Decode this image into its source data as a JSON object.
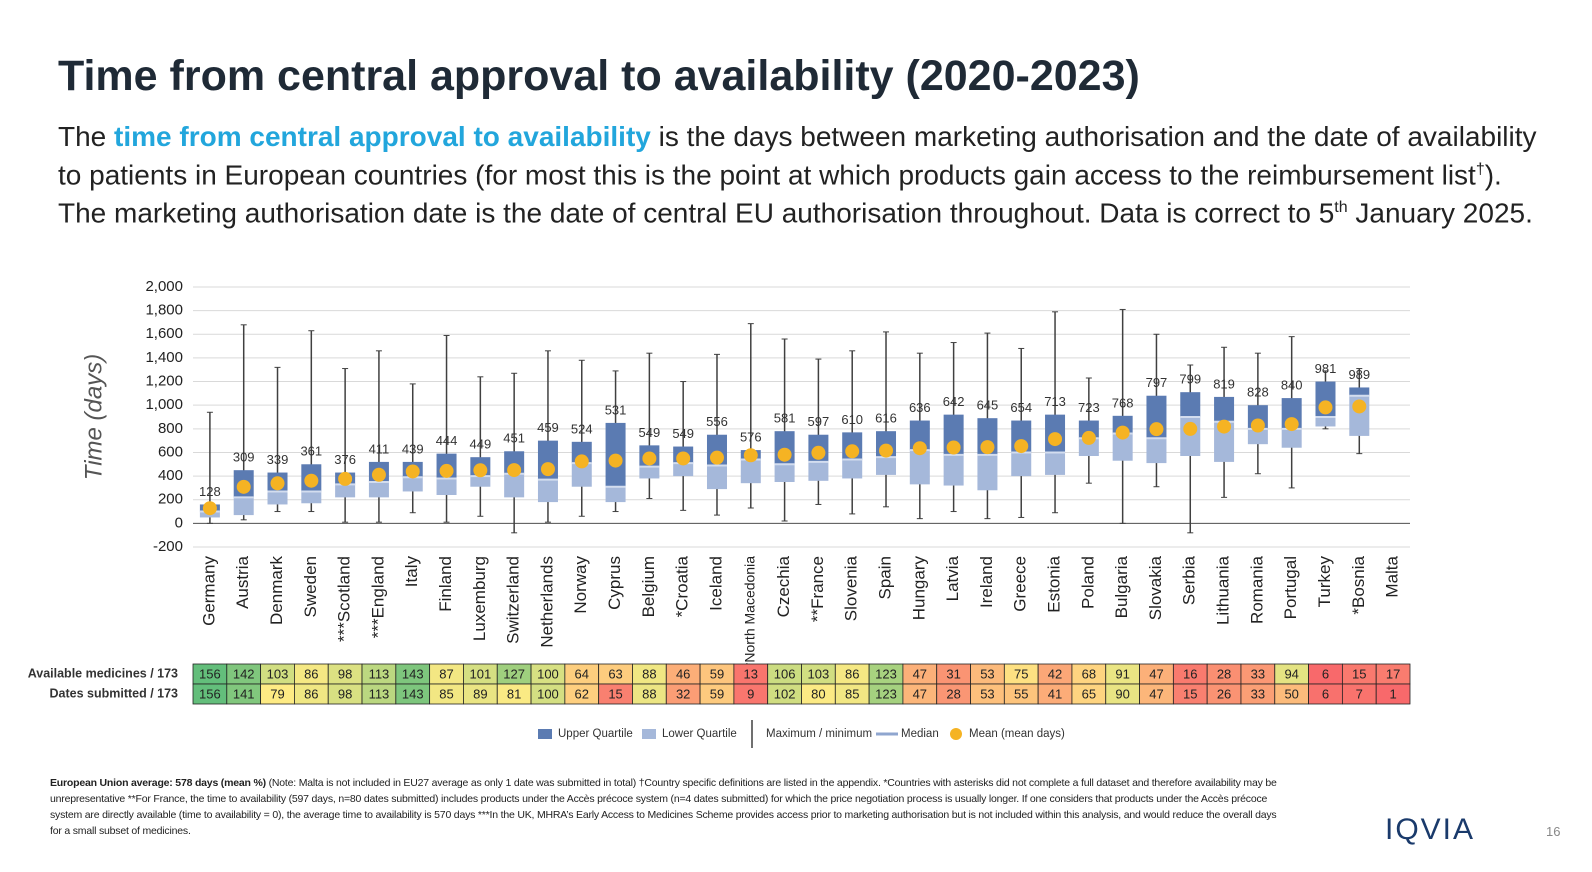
{
  "header": {
    "title": "Time from central approval to availability (2020-2023)",
    "subtitle": [
      "The ",
      "time from central approval to availability",
      " is the days between marketing authorisation and the date of availability to patients in European countries (for most this is the point at which products gain access to the reimbursement list",
      "†",
      "). The marketing authorisation date is the date of central EU authorisation throughout. Data is correct to 5",
      "th",
      " January 2025."
    ]
  },
  "chart_data": {
    "type": "box",
    "y_label": "Time (days)",
    "categories": [
      "Germany",
      "Austria",
      "Denmark",
      "Sweden",
      "***Scotland",
      "***England",
      "Italy",
      "Finland",
      "Luxemburg",
      "Switzerland",
      "Netherlands",
      "Norway",
      "Cyprus",
      "Belgium",
      "*Croatia",
      "Iceland",
      "*North Macedonia",
      "Czechia",
      "**France",
      "Slovenia",
      "Spain",
      "Hungary",
      "Latvia",
      "Ireland",
      "Greece",
      "Estonia",
      "Poland",
      "Bulgaria",
      "Slovakia",
      "Serbia",
      "Lithuania",
      "Romania",
      "Portugal",
      "Turkey",
      "*Bosnia",
      "Malta"
    ],
    "min": [
      0,
      30,
      100,
      100,
      10,
      10,
      90,
      10,
      60,
      -80,
      10,
      60,
      100,
      210,
      110,
      70,
      130,
      20,
      160,
      80,
      140,
      40,
      100,
      40,
      50,
      90,
      340,
      0,
      310,
      -80,
      220,
      420,
      300,
      800,
      590,
      null
    ],
    "q1": [
      50,
      70,
      160,
      170,
      220,
      220,
      270,
      240,
      310,
      220,
      180,
      310,
      180,
      380,
      400,
      290,
      340,
      350,
      360,
      380,
      410,
      330,
      320,
      280,
      400,
      410,
      570,
      530,
      510,
      570,
      520,
      670,
      640,
      820,
      740,
      null
    ],
    "median": [
      100,
      220,
      270,
      270,
      330,
      350,
      390,
      380,
      400,
      420,
      370,
      510,
      310,
      480,
      510,
      490,
      540,
      500,
      520,
      540,
      560,
      620,
      580,
      580,
      600,
      600,
      720,
      760,
      720,
      900,
      860,
      800,
      800,
      900,
      1080,
      null
    ],
    "q3": [
      160,
      450,
      430,
      500,
      430,
      520,
      520,
      590,
      560,
      610,
      700,
      690,
      850,
      660,
      650,
      750,
      620,
      780,
      750,
      770,
      780,
      870,
      920,
      890,
      870,
      920,
      870,
      910,
      1080,
      1110,
      1070,
      1000,
      1060,
      1200,
      1150,
      null
    ],
    "max": [
      940,
      1680,
      1320,
      1630,
      1310,
      1460,
      1180,
      1590,
      1240,
      1270,
      1460,
      1380,
      1290,
      1440,
      1200,
      1430,
      1690,
      1560,
      1390,
      1460,
      1620,
      1440,
      1530,
      1610,
      1480,
      1790,
      1230,
      1810,
      1600,
      1340,
      1490,
      1440,
      1580,
      1290,
      1310,
      null
    ],
    "mean": [
      128,
      309,
      339,
      361,
      376,
      411,
      439,
      444,
      449,
      451,
      459,
      524,
      531,
      549,
      549,
      556,
      576,
      581,
      597,
      610,
      616,
      636,
      642,
      645,
      654,
      713,
      723,
      768,
      797,
      799,
      819,
      828,
      840,
      981,
      989,
      null
    ],
    "colors": {
      "upper": "#5b7bb2",
      "lower": "#a5b8da",
      "median": "#d3ddef",
      "whisker": "#404040",
      "mean": "#f5b323"
    },
    "ylim": [
      -200,
      2000
    ],
    "yticks": [
      -200,
      0,
      200,
      400,
      600,
      800,
      {
        "value": 1000,
        "label": "1,000"
      },
      {
        "value": 1200,
        "label": "1,200"
      },
      {
        "value": 1400,
        "label": "1,400"
      },
      {
        "value": 1600,
        "label": "1,600"
      },
      {
        "value": 1800,
        "label": "1,800"
      },
      {
        "value": 2000,
        "label": "2,000"
      }
    ],
    "grid": true,
    "legend": [
      "Upper Quartile",
      "Lower Quartile",
      "Maximum / minimum",
      "Median",
      "Mean (mean days)"
    ]
  },
  "table": {
    "rows": [
      {
        "label": "Available medicines / 173",
        "values": [
          156,
          142,
          103,
          86,
          98,
          113,
          143,
          87,
          101,
          127,
          100,
          64,
          63,
          88,
          46,
          59,
          13,
          106,
          103,
          86,
          123,
          47,
          31,
          53,
          75,
          42,
          68,
          91,
          47,
          16,
          28,
          33,
          94,
          6,
          15,
          17
        ]
      },
      {
        "label": "Dates submitted / 173",
        "values": [
          156,
          141,
          79,
          86,
          98,
          113,
          143,
          85,
          89,
          81,
          100,
          62,
          15,
          88,
          32,
          59,
          9,
          102,
          80,
          85,
          123,
          47,
          28,
          53,
          55,
          41,
          65,
          90,
          47,
          15,
          26,
          33,
          50,
          6,
          7,
          1
        ]
      }
    ],
    "scale_colors": [
      "#f8696b",
      "#ffeb84",
      "#63be7b"
    ]
  },
  "footer": {
    "bold": "European Union average: 578 days (mean %)",
    "text": " (Note: Malta is not included in EU27 average as only 1 date was submitted in total) †Country specific definitions are listed in the appendix. *Countries with asterisks did not complete a full dataset and therefore availability may be unrepresentative **For France, the time to availability (597 days, n=80 dates submitted) includes products under the Accès précoce system (n=4 dates submitted) for which the price negotiation process is usually longer. If one considers that products under the Accès précoce system are directly available (time to availability = 0), the average time to availability is 570 days ***In the UK, MHRA’s Early Access to Medicines Scheme provides access prior to marketing authorisation but is not included within this analysis, and would reduce the overall days for a small subset of medicines.",
    "logo": "IQVIA",
    "page": "16"
  }
}
